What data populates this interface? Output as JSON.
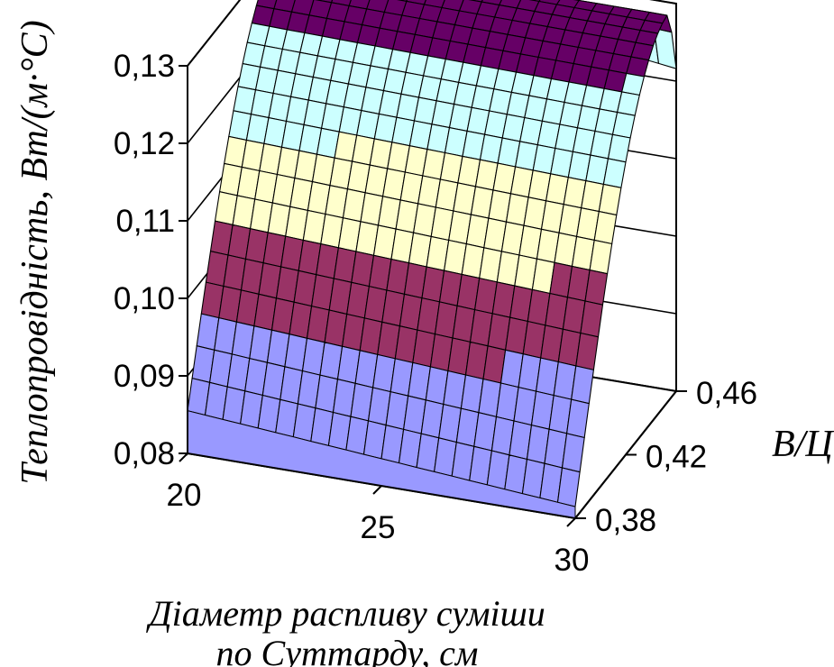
{
  "chart_data": {
    "type": "surface3d",
    "title": "",
    "zlabel": "Теплопровідність, Вт/(м·°С)",
    "xlabel_line1": "Діаметр распливу суміши",
    "xlabel_line2": "по Суттарду, см",
    "ylabel": "В/Ц",
    "x_ticks": [
      "20",
      "25",
      "30"
    ],
    "y_ticks": [
      "0,38",
      "0,42",
      "0,46"
    ],
    "z_ticks": [
      "0,08",
      "0,09",
      "0,10",
      "0,11",
      "0,12",
      "0,13"
    ],
    "xlim": [
      20,
      30
    ],
    "ylim": [
      0.38,
      0.46
    ],
    "zlim": [
      0.08,
      0.13
    ],
    "band_colors": [
      "#9999ff",
      "#993366",
      "#ffffcc",
      "#ccffff",
      "#660066"
    ],
    "surface_samples": [
      {
        "x": 20,
        "y": 0.38,
        "z": 0.0855
      },
      {
        "x": 25,
        "y": 0.38,
        "z": 0.0835
      },
      {
        "x": 30,
        "y": 0.38,
        "z": 0.0815
      },
      {
        "x": 20,
        "y": 0.42,
        "z": 0.1155
      },
      {
        "x": 25,
        "y": 0.42,
        "z": 0.1135
      },
      {
        "x": 30,
        "y": 0.42,
        "z": 0.1115
      },
      {
        "x": 20,
        "y": 0.46,
        "z": 0.13
      },
      {
        "x": 25,
        "y": 0.46,
        "z": 0.1305
      },
      {
        "x": 30,
        "y": 0.46,
        "z": 0.127
      }
    ]
  }
}
